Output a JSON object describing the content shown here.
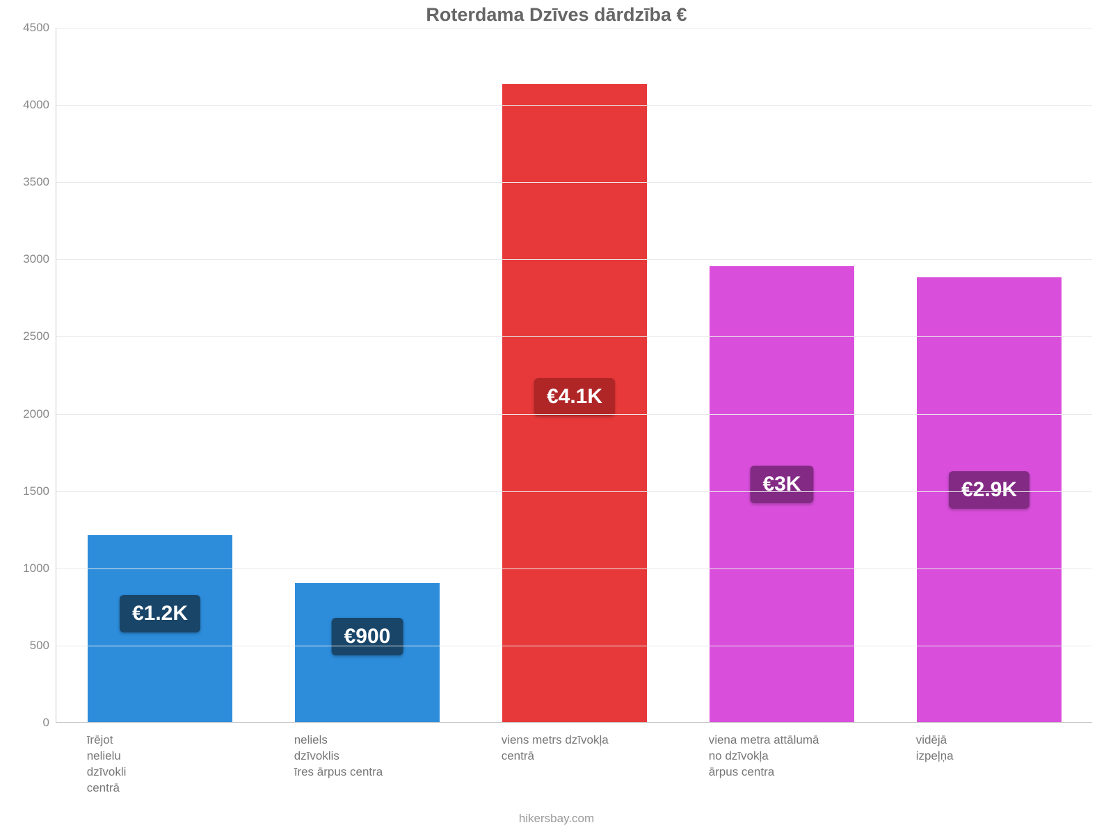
{
  "chart": {
    "type": "bar",
    "title": "Roterdama Dzīves dārdzība €",
    "title_fontsize": 27,
    "title_color": "#666666",
    "background_color": "#ffffff",
    "grid_color": "#e9e9e9",
    "axis_color": "#c9c9c9",
    "y": {
      "min": 0,
      "max": 4500,
      "step": 500,
      "label_color": "#888888",
      "label_fontsize": 17
    },
    "x_label_fontsize": 17,
    "x_label_color": "#777777",
    "bar_width_ratio": 0.7,
    "categories": [
      {
        "lines": [
          "īrējot",
          "nelielu",
          "dzīvokli",
          "centrā"
        ],
        "value": 1210,
        "color": "#2d8ddb",
        "badge_text": "€1.2K",
        "badge_bg": "#194569",
        "badge_fontsize": 30
      },
      {
        "lines": [
          "neliels",
          "dzīvoklis",
          "īres ārpus centra"
        ],
        "value": 900,
        "color": "#2d8ddb",
        "badge_text": "€900",
        "badge_bg": "#194569",
        "badge_fontsize": 30
      },
      {
        "lines": [
          "viens metrs dzīvokļa",
          "centrā"
        ],
        "value": 4130,
        "color": "#e8393a",
        "badge_text": "€4.1K",
        "badge_bg": "#b02627",
        "badge_fontsize": 30
      },
      {
        "lines": [
          "viena metra attālumā",
          "no dzīvokļa",
          "ārpus centra"
        ],
        "value": 2950,
        "color": "#d94fdc",
        "badge_text": "€3K",
        "badge_bg": "#832a85",
        "badge_fontsize": 30
      },
      {
        "lines": [
          "vidējā",
          "izpeļņa"
        ],
        "value": 2880,
        "color": "#d94fdc",
        "badge_text": "€2.9K",
        "badge_bg": "#832a85",
        "badge_fontsize": 30
      }
    ],
    "attribution": "hikersbay.com",
    "attribution_fontsize": 17,
    "attribution_color": "#999999"
  }
}
